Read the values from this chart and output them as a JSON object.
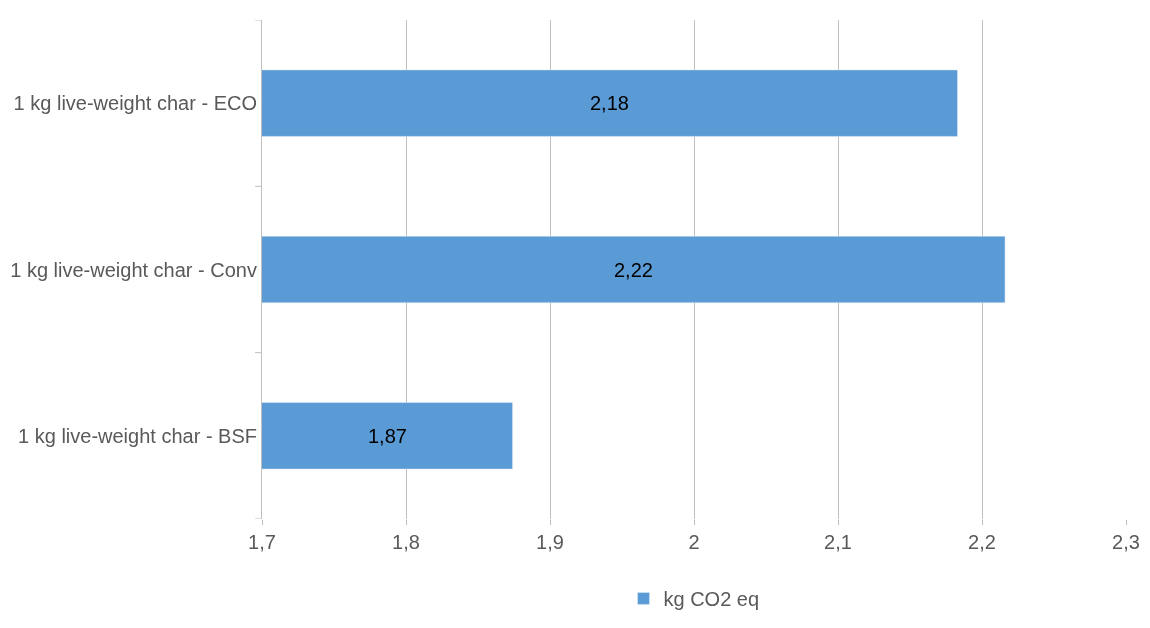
{
  "chart_data": {
    "type": "bar",
    "orientation": "horizontal",
    "categories": [
      "1 kg live-weight char - ECO",
      "1 kg live-weight char - Conv",
      "1 kg live-weight char - BSF"
    ],
    "series": [
      {
        "name": "kg CO2 eq",
        "color": "#5b9bd5",
        "values": [
          2.183,
          2.216,
          1.874
        ],
        "value_labels": [
          "2,18",
          "2,22",
          "1,87"
        ]
      }
    ],
    "xlim": [
      1.7,
      2.3
    ],
    "xticks": [
      {
        "value": 1.7,
        "label": "1,7"
      },
      {
        "value": 1.8,
        "label": "1,8"
      },
      {
        "value": 1.9,
        "label": "1,9"
      },
      {
        "value": 2,
        "label": "2"
      },
      {
        "value": 2.1,
        "label": "2,1"
      },
      {
        "value": 2.2,
        "label": "2,2"
      },
      {
        "value": 2.3,
        "label": "2,3"
      }
    ],
    "grid": "x",
    "legend": "bottom"
  }
}
